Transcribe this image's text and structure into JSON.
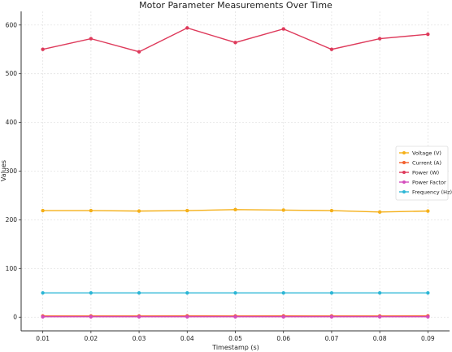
{
  "chart_data": {
    "type": "line",
    "title": "Motor Parameter Measurements Over Time",
    "xlabel": "Timestamp (s)",
    "ylabel": "Values",
    "x": [
      0.01,
      0.02,
      0.03,
      0.04,
      0.05,
      0.06,
      0.07,
      0.08,
      0.09
    ],
    "x_tick_labels": [
      "0.01",
      "0.02",
      "0.03",
      "0.04",
      "0.05",
      "0.06",
      "0.07",
      "0.08",
      "0.09"
    ],
    "yticks": [
      0,
      100,
      200,
      300,
      400,
      500,
      600
    ],
    "ylim": [
      -28,
      628
    ],
    "grid": true,
    "legend_position": "center-right",
    "series": [
      {
        "name": "Voltage (V)",
        "color": "#f5b019",
        "values": [
          219,
          219,
          218,
          219,
          221,
          220,
          219,
          216,
          218
        ]
      },
      {
        "name": "Current (A)",
        "color": "#f2612e",
        "values": [
          2.5,
          2.6,
          2.5,
          2.7,
          2.6,
          2.7,
          2.5,
          2.6,
          2.7
        ]
      },
      {
        "name": "Power (W)",
        "color": "#de3a5b",
        "values": [
          550,
          572,
          545,
          594,
          564,
          592,
          550,
          572,
          581
        ]
      },
      {
        "name": "Power Factor",
        "color": "#d44dbd",
        "values": [
          0.95,
          0.96,
          0.94,
          0.97,
          0.95,
          0.96,
          0.94,
          0.95,
          0.96
        ]
      },
      {
        "name": "Frequency (Hz)",
        "color": "#2eb7d6",
        "values": [
          50,
          50,
          49.9,
          50,
          50,
          50,
          49.9,
          50,
          50
        ]
      }
    ]
  }
}
